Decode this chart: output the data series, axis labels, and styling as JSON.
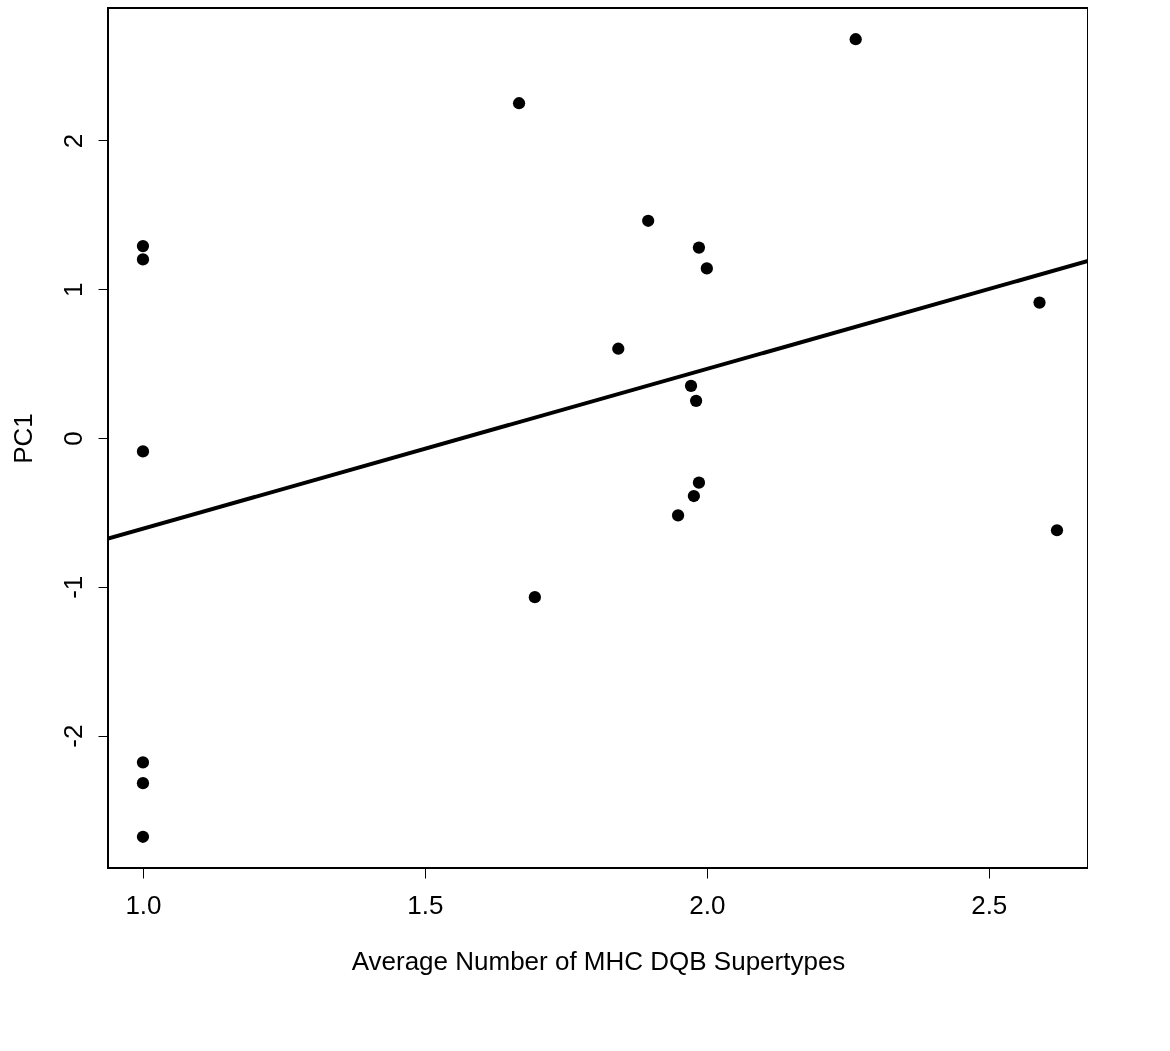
{
  "chart_data": {
    "type": "scatter",
    "xlabel": "Average Number of MHC DQB Supertypes",
    "ylabel": "PC1",
    "xlim": [
      0.938,
      2.676
    ],
    "ylim": [
      -2.89,
      2.89
    ],
    "xticks": [
      {
        "value": 1,
        "label": "1.0"
      },
      1.5,
      {
        "value": 2,
        "label": "2.0"
      },
      2.5
    ],
    "yticks": [
      -2,
      -1,
      0,
      1,
      2
    ],
    "grid": false,
    "series": [
      {
        "color": "#000000",
        "marker": "circle",
        "x": [
          1.0,
          1.0,
          1.0,
          1.0,
          1.0,
          1.0,
          1.667,
          1.695,
          1.843,
          1.896,
          1.949,
          1.972,
          1.981,
          1.977,
          1.986,
          1.986,
          2.0,
          2.264,
          2.59,
          2.621
        ],
        "values": [
          1.29,
          1.2,
          -0.09,
          -2.18,
          -2.32,
          -2.68,
          2.25,
          -1.07,
          0.6,
          1.46,
          -0.52,
          0.35,
          0.25,
          -0.39,
          -0.3,
          1.28,
          1.14,
          2.68,
          0.91,
          -0.62
        ]
      },
      {
        "type": "line",
        "color": "#000000",
        "x": [
          0.938,
          2.676
        ],
        "values": [
          -0.676,
          1.19
        ]
      }
    ]
  }
}
